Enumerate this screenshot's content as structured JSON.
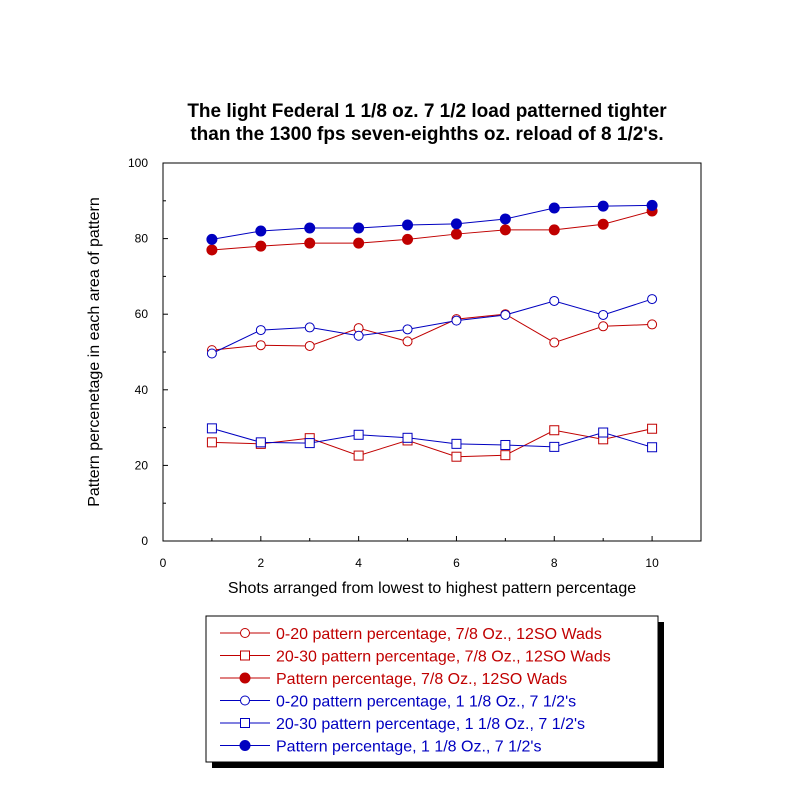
{
  "chart_data": {
    "type": "line",
    "title_lines": [
      "The light Federal 1 1/8 oz. 7 1/2 load patterned tighter",
      "than the 1300 fps seven-eighths oz. reload of 8 1/2's."
    ],
    "xlabel": "Shots arranged from lowest to highest pattern percentage",
    "ylabel": "Pattern percenetage in each area of pattern",
    "xlim": [
      0,
      11
    ],
    "ylim": [
      0,
      100
    ],
    "xticks": [
      0,
      2,
      4,
      6,
      8,
      10
    ],
    "yticks": [
      0,
      20,
      40,
      60,
      80,
      100
    ],
    "x": [
      1,
      2,
      3,
      4,
      5,
      6,
      7,
      8,
      9,
      10
    ],
    "grid": false,
    "legend_position": "bottom",
    "series": [
      {
        "name": "0-20 pattern percentage, 7/8 Oz., 12SO Wads",
        "color": "#c00000",
        "marker": "circle-open",
        "values": [
          50.5,
          51.8,
          51.6,
          56.3,
          52.8,
          58.7,
          60.0,
          52.5,
          56.8,
          57.3
        ]
      },
      {
        "name": "20-30 pattern percentage, 7/8 Oz., 12SO Wads",
        "color": "#c00000",
        "marker": "square-open",
        "values": [
          26.1,
          25.7,
          27.2,
          22.6,
          26.6,
          22.3,
          22.7,
          29.3,
          26.9,
          29.7
        ]
      },
      {
        "name": "Pattern percentage, 7/8 Oz., 12SO Wads",
        "color": "#c00000",
        "marker": "circle-filled",
        "values": [
          77.0,
          78.0,
          78.8,
          78.8,
          79.8,
          81.2,
          82.3,
          82.3,
          83.8,
          87.3
        ]
      },
      {
        "name": "0-20 pattern percentage, 1 1/8 Oz., 7 1/2's",
        "color": "#0000c0",
        "marker": "circle-open",
        "values": [
          49.6,
          55.8,
          56.5,
          54.3,
          56.0,
          58.3,
          59.8,
          63.5,
          59.8,
          64.0
        ]
      },
      {
        "name": "20-30 pattern percentage, 1 1/8 Oz., 7 1/2's",
        "color": "#0000c0",
        "marker": "square-open",
        "values": [
          29.8,
          26.1,
          25.9,
          28.1,
          27.3,
          25.7,
          25.4,
          24.9,
          28.7,
          24.8
        ]
      },
      {
        "name": "Pattern percentage, 1 1/8 Oz., 7 1/2's",
        "color": "#0000c0",
        "marker": "circle-filled",
        "values": [
          79.8,
          82.0,
          82.8,
          82.8,
          83.6,
          83.9,
          85.2,
          88.1,
          88.6,
          88.8
        ]
      }
    ]
  }
}
